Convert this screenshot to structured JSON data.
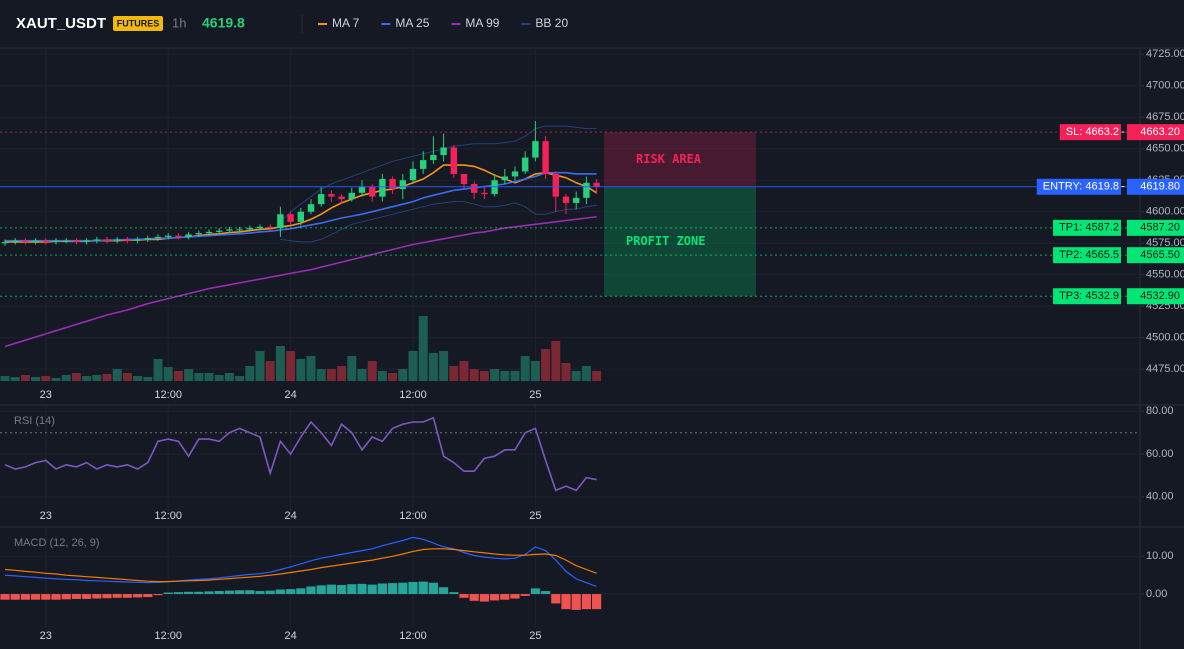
{
  "header": {
    "symbol": "XAUT_USDT",
    "badge": "FUTURES",
    "interval": "1h",
    "price": "4619.8"
  },
  "chart_data": [
    {
      "type": "candlestick",
      "categories": [
        null,
        null,
        null,
        null,
        "23",
        null,
        null,
        null,
        null,
        null,
        null,
        null,
        null,
        null,
        null,
        null,
        "12:00",
        null,
        null,
        null,
        null,
        null,
        null,
        null,
        null,
        null,
        null,
        null,
        "24",
        null,
        null,
        null,
        null,
        null,
        null,
        null,
        null,
        null,
        null,
        null,
        "12:00",
        null,
        null,
        null,
        null,
        null,
        null,
        null,
        null,
        null,
        null,
        null,
        "25",
        null,
        null,
        null,
        null,
        null,
        null
      ],
      "open": [
        4575,
        4576,
        4577,
        4576,
        4577,
        4576,
        4577,
        4577,
        4576,
        4577,
        4578,
        4577,
        4578,
        4577,
        4578,
        4579,
        4580,
        4581,
        4580,
        4582,
        4583,
        4584,
        4585,
        4586,
        4586,
        4587,
        4588,
        4587,
        4598,
        4592,
        4600,
        4606,
        4614,
        4612,
        4610,
        4615,
        4620,
        4612,
        4626,
        4618,
        4625,
        4634,
        4641,
        4645,
        4651,
        4630,
        4622,
        4615,
        4614,
        4625,
        4628,
        4632,
        4643,
        4656,
        4630,
        4612,
        4607,
        4611,
        4623
      ],
      "high": [
        4578,
        4579,
        4579,
        4579,
        4579,
        4579,
        4579,
        4579,
        4579,
        4580,
        4580,
        4580,
        4580,
        4580,
        4581,
        4582,
        4583,
        4583,
        4584,
        4585,
        4586,
        4587,
        4588,
        4588,
        4589,
        4590,
        4590,
        4604,
        4600,
        4603,
        4610,
        4620,
        4617,
        4614,
        4619,
        4625,
        4622,
        4630,
        4628,
        4630,
        4640,
        4648,
        4660,
        4662,
        4653,
        4630,
        4624,
        4620,
        4630,
        4634,
        4636,
        4648,
        4672,
        4660,
        4632,
        4614,
        4616,
        4628,
        4626
      ],
      "low": [
        4573,
        4574,
        4574,
        4574,
        4574,
        4574,
        4575,
        4574,
        4574,
        4575,
        4575,
        4575,
        4575,
        4575,
        4576,
        4577,
        4578,
        4578,
        4578,
        4580,
        4581,
        4582,
        4583,
        4584,
        4584,
        4585,
        4585,
        4580,
        4590,
        4589,
        4598,
        4604,
        4608,
        4606,
        4608,
        4612,
        4608,
        4608,
        4614,
        4610,
        4622,
        4630,
        4638,
        4640,
        4627,
        4618,
        4610,
        4610,
        4612,
        4622,
        4625,
        4630,
        4640,
        4626,
        4600,
        4598,
        4602,
        4606,
        4614
      ],
      "close": [
        4576,
        4577,
        4576,
        4577,
        4576,
        4577,
        4577,
        4576,
        4577,
        4578,
        4577,
        4578,
        4577,
        4578,
        4579,
        4580,
        4581,
        4580,
        4582,
        4583,
        4584,
        4585,
        4586,
        4586,
        4587,
        4588,
        4587,
        4598,
        4592,
        4600,
        4606,
        4614,
        4612,
        4610,
        4615,
        4620,
        4612,
        4626,
        4618,
        4625,
        4634,
        4641,
        4645,
        4651,
        4630,
        4622,
        4615,
        4614,
        4625,
        4628,
        4632,
        4643,
        4656,
        4630,
        4612,
        4607,
        4611,
        4623,
        4619.8
      ],
      "up_color": "#26d07c",
      "down_color": "#f7215a",
      "series": [
        {
          "name": "MA 7",
          "color": "#f7931a",
          "values": [
            4576,
            4576,
            4576,
            4576,
            4576,
            4576.5,
            4576.5,
            4576.5,
            4576.5,
            4577,
            4577,
            4577,
            4577.5,
            4577.5,
            4578,
            4578,
            4579,
            4579.5,
            4580,
            4581,
            4582,
            4582.5,
            4583.5,
            4584,
            4585,
            4586,
            4586.5,
            4588,
            4589,
            4591,
            4594,
            4598,
            4603,
            4607,
            4610,
            4613,
            4615,
            4617,
            4618,
            4620,
            4623,
            4626,
            4631,
            4637,
            4637,
            4637,
            4636,
            4633,
            4629,
            4626,
            4623,
            4626,
            4630,
            4631,
            4629,
            4627,
            4623,
            4620,
            4615
          ]
        },
        {
          "name": "MA 25",
          "color": "#3b6cf0",
          "values": [
            4577,
            4577,
            4577,
            4577,
            4577,
            4577,
            4577,
            4577,
            4577,
            4577,
            4577.5,
            4577.5,
            4578,
            4578,
            4578.5,
            4579,
            4579,
            4579.5,
            4580,
            4580.5,
            4581,
            4581.5,
            4582,
            4582.5,
            4583,
            4584,
            4584.5,
            4585.5,
            4586.5,
            4588,
            4589.5,
            4591,
            4593,
            4595,
            4596.5,
            4598,
            4600,
            4602,
            4604,
            4606,
            4608,
            4611,
            4613,
            4615,
            4617,
            4618,
            4619,
            4620,
            4621,
            4622,
            4624,
            4626,
            4628,
            4631,
            4631,
            4631,
            4630,
            4630,
            4630
          ]
        },
        {
          "name": "MA 99",
          "color": "#9c2bb5",
          "values": [
            4493,
            4495.5,
            4498,
            4500.5,
            4503,
            4505.5,
            4508,
            4510.5,
            4513,
            4515.5,
            4518,
            4520,
            4522,
            4524.5,
            4527,
            4529,
            4531,
            4533,
            4535,
            4537,
            4539,
            4540.5,
            4542,
            4543.5,
            4545,
            4546.5,
            4548,
            4549.5,
            4551,
            4552.5,
            4554,
            4556,
            4558,
            4560,
            4562,
            4564,
            4566,
            4568,
            4570,
            4572,
            4574,
            4575.5,
            4577,
            4578.5,
            4580,
            4581.5,
            4583,
            4584,
            4585.5,
            4587,
            4588,
            4589,
            4590,
            4591,
            4592,
            4593,
            4594,
            4595,
            4596
          ]
        }
      ],
      "bands": {
        "name": "BB 20",
        "color": "#25407a",
        "upper": [
          null,
          null,
          null,
          null,
          null,
          null,
          null,
          null,
          null,
          null,
          null,
          null,
          null,
          null,
          null,
          null,
          null,
          null,
          null,
          null,
          null,
          null,
          null,
          null,
          null,
          null,
          null,
          4592,
          4600,
          4606,
          4612,
          4618,
          4622,
          4625,
          4628,
          4631,
          4634,
          4637,
          4640,
          4642,
          4644,
          4646,
          4648,
          4650,
          4652,
          4653,
          4654,
          4654,
          4654,
          4655,
          4656,
          4660,
          4666,
          4668,
          4668,
          4668,
          4667,
          4666,
          4666
        ],
        "lower": [
          null,
          null,
          null,
          null,
          null,
          null,
          null,
          null,
          null,
          null,
          null,
          null,
          null,
          null,
          null,
          null,
          null,
          null,
          null,
          null,
          null,
          null,
          null,
          null,
          null,
          null,
          null,
          4578,
          4577,
          4576,
          4576,
          4578,
          4582,
          4586,
          4590,
          4592,
          4594,
          4596,
          4598,
          4600,
          4602,
          4604,
          4606,
          4607,
          4608,
          4608,
          4606,
          4604,
          4604,
          4605,
          4607,
          4604,
          4598,
          4598,
          4600,
          4602,
          4602,
          4604,
          4605
        ]
      },
      "volume": [
        5,
        4,
        6,
        4,
        5,
        3,
        6,
        8,
        5,
        6,
        7,
        12,
        8,
        5,
        4,
        22,
        14,
        10,
        12,
        8,
        8,
        6,
        8,
        5,
        15,
        30,
        20,
        35,
        30,
        22,
        25,
        12,
        12,
        15,
        25,
        12,
        20,
        10,
        8,
        12,
        30,
        65,
        28,
        30,
        15,
        20,
        12,
        10,
        12,
        10,
        10,
        25,
        20,
        32,
        40,
        18,
        10,
        15,
        10
      ],
      "levels": [
        {
          "label": "SL: 4663.2",
          "value": 4663.2,
          "value_label": "4663.20",
          "color": "#f7215a"
        },
        {
          "label": "ENTRY: 4619.8",
          "value": 4619.8,
          "value_label": "4619.80",
          "color": "#2962ff"
        },
        {
          "label": "TP1: 4587.2",
          "value": 4587.2,
          "value_label": "4587.20",
          "color": "#00e676"
        },
        {
          "label": "TP2: 4565.5",
          "value": 4565.5,
          "value_label": "4565.50",
          "color": "#00e676"
        },
        {
          "label": "TP3: 4532.9",
          "value": 4532.9,
          "value_label": "4532.90",
          "color": "#00e676"
        }
      ],
      "zones": [
        {
          "label": "RISK AREA",
          "from": 4619.8,
          "to": 4663.2,
          "color": "#f7215a"
        },
        {
          "label": "PROFIT ZONE",
          "from": 4532.9,
          "to": 4619.8,
          "color": "#00e676"
        }
      ],
      "ylim": [
        4464,
        4730
      ],
      "yticks": [
        {
          "value": 4725,
          "label": "4725.00"
        },
        {
          "value": 4700,
          "label": "4700.00"
        },
        {
          "value": 4675,
          "label": "4675.00"
        },
        {
          "value": 4650,
          "label": "4650.00"
        },
        {
          "value": 4625,
          "label": "4625.00"
        },
        {
          "value": 4600,
          "label": "4600.00"
        },
        {
          "value": 4575,
          "label": "4575.00"
        },
        {
          "value": 4550,
          "label": "4550.00"
        },
        {
          "value": 4525,
          "label": "4525.00"
        },
        {
          "value": 4500,
          "label": "4500.00"
        },
        {
          "value": 4475,
          "label": "4475.00"
        }
      ],
      "grid": true
    },
    {
      "type": "line",
      "title": "RSI (14)",
      "categories": [
        null,
        null,
        null,
        null,
        "23",
        null,
        null,
        null,
        null,
        null,
        null,
        null,
        null,
        null,
        null,
        null,
        "12:00",
        null,
        null,
        null,
        null,
        null,
        null,
        null,
        null,
        null,
        null,
        null,
        "24",
        null,
        null,
        null,
        null,
        null,
        null,
        null,
        null,
        null,
        null,
        null,
        "12:00",
        null,
        null,
        null,
        null,
        null,
        null,
        null,
        null,
        null,
        null,
        null,
        "25",
        null,
        null,
        null,
        null,
        null,
        null
      ],
      "series": [
        {
          "color": "#7e57c2",
          "values": [
            55,
            53,
            54,
            56,
            57,
            53,
            55,
            54,
            56,
            53,
            55,
            54,
            55,
            53,
            56,
            66,
            67,
            66,
            59,
            67,
            67,
            66,
            70,
            72,
            70,
            68,
            51,
            66,
            60,
            68,
            75,
            70,
            64,
            74,
            70,
            62,
            68,
            66,
            72,
            74,
            75,
            75,
            77,
            59,
            56,
            52,
            52,
            58,
            59,
            62,
            62,
            70,
            72,
            57,
            43,
            45,
            43,
            49,
            48
          ]
        }
      ],
      "reference_lines": [
        70
      ],
      "ylim": [
        31.5,
        82.5
      ],
      "yticks": [
        {
          "value": 80,
          "label": "80.00"
        },
        {
          "value": 60,
          "label": "60.00"
        },
        {
          "value": 40,
          "label": "40.00"
        }
      ],
      "grid": true
    },
    {
      "type": "macd",
      "title": "MACD (12, 26, 9)",
      "categories": [
        null,
        null,
        null,
        null,
        "23",
        null,
        null,
        null,
        null,
        null,
        null,
        null,
        null,
        null,
        null,
        null,
        "12:00",
        null,
        null,
        null,
        null,
        null,
        null,
        null,
        null,
        null,
        null,
        null,
        "24",
        null,
        null,
        null,
        null,
        null,
        null,
        null,
        null,
        null,
        null,
        null,
        "12:00",
        null,
        null,
        null,
        null,
        null,
        null,
        null,
        null,
        null,
        null,
        null,
        "25",
        null,
        null,
        null,
        null,
        null,
        null
      ],
      "series": [
        {
          "color": "#2962ff",
          "values": [
            5,
            4.8,
            4.6,
            4.4,
            4.2,
            4,
            3.9,
            3.8,
            3.6,
            3.5,
            3.4,
            3.3,
            3.2,
            3.1,
            3,
            3.1,
            3.3,
            3.5,
            3.7,
            3.9,
            4,
            4.3,
            4.6,
            4.9,
            5.2,
            5.4,
            5.8,
            6.5,
            7.2,
            8,
            8.8,
            9.5,
            10,
            10.5,
            11,
            11.5,
            12,
            12.8,
            13.5,
            14.2,
            15,
            14.5,
            13.5,
            12.5,
            12,
            11,
            10.2,
            9.8,
            9.5,
            9.3,
            9.5,
            10.5,
            12.5,
            11.5,
            9,
            6,
            4,
            3,
            2
          ]
        },
        {
          "color": "#f57c00",
          "values": [
            6.5,
            6.3,
            6,
            5.8,
            5.5,
            5.3,
            5,
            4.8,
            4.6,
            4.4,
            4.2,
            4,
            3.8,
            3.6,
            3.4,
            3.3,
            3.3,
            3.4,
            3.5,
            3.6,
            3.7,
            3.9,
            4.1,
            4.3,
            4.5,
            4.7,
            5,
            5.3,
            5.7,
            6.1,
            6.5,
            7,
            7.4,
            7.8,
            8.2,
            8.6,
            9,
            9.5,
            10,
            10.6,
            11.3,
            11.8,
            12,
            12,
            11.8,
            11.5,
            11.2,
            10.9,
            10.6,
            10.4,
            10.3,
            10.3,
            10.5,
            10.6,
            10.2,
            9,
            7.5,
            6.5,
            5.5
          ]
        }
      ],
      "histogram": {
        "up_color": "#26a69a",
        "down_color": "#ef5350",
        "values": [
          -1.5,
          -1.5,
          -1.5,
          -1.5,
          -1.5,
          -1.5,
          -1.4,
          -1.3,
          -1.3,
          -1.2,
          -1.1,
          -1,
          -1,
          -0.9,
          -0.8,
          -0.3,
          0.4,
          0.5,
          0.6,
          0.6,
          0.7,
          0.8,
          0.9,
          1,
          1,
          0.8,
          0.9,
          1.2,
          1.3,
          1.5,
          2,
          2.3,
          2.5,
          2.4,
          2.6,
          2.7,
          2.5,
          2.8,
          2.9,
          3,
          3.2,
          3.3,
          3,
          1.8,
          0.5,
          -1,
          -1.8,
          -2,
          -1.7,
          -1.5,
          -1.2,
          -0.5,
          1.5,
          0.8,
          -2.5,
          -4,
          -4.2,
          -4,
          -4
        ]
      },
      "ylim": [
        -9,
        17.5
      ],
      "yticks": [
        {
          "value": 10,
          "label": "10.00"
        },
        {
          "value": 0,
          "label": "0.00"
        }
      ],
      "grid": true
    }
  ]
}
